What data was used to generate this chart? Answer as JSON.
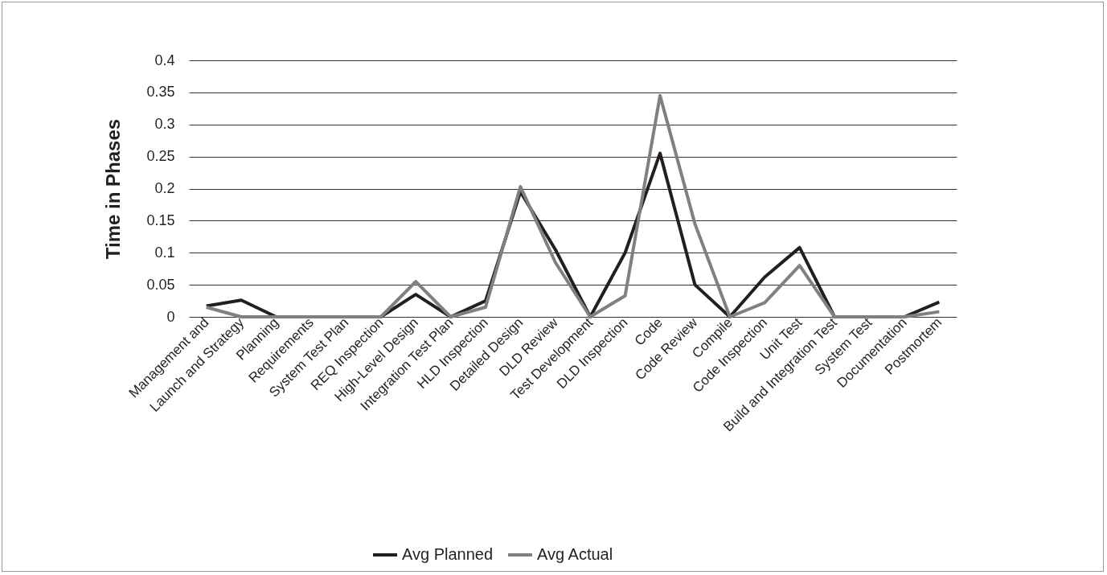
{
  "chart_data": {
    "type": "line",
    "ylabel": "Time in Phases",
    "categories": [
      "Management and",
      "Launch and Strategy",
      "Planning",
      "Requirements",
      "System Test Plan",
      "REQ Inspection",
      "High-Level Design",
      "Integration Test Plan",
      "HLD Inspection",
      "Detailed Design",
      "DLD Review",
      "Test Development",
      "DLD Inspection",
      "Code",
      "Code Review",
      "Compile",
      "Code Inspection",
      "Unit Test",
      "Build and Integration Test",
      "System Test",
      "Documentation",
      "Postmortem"
    ],
    "series": [
      {
        "name": "Avg Planned",
        "color": "#231f20",
        "values": [
          0.017,
          0.026,
          0,
          0,
          0,
          0,
          0.035,
          0,
          0.025,
          0.195,
          0.105,
          0,
          0.1,
          0.255,
          0.05,
          0,
          0.062,
          0.108,
          0,
          0,
          0,
          0.023
        ]
      },
      {
        "name": "Avg Actual",
        "color": "#808080",
        "values": [
          0.015,
          0,
          0,
          0,
          0,
          0,
          0.055,
          0,
          0.015,
          0.203,
          0.085,
          0,
          0.033,
          0.345,
          0.145,
          0,
          0.022,
          0.08,
          0,
          0,
          0,
          0.008
        ]
      }
    ],
    "ylim": [
      0,
      0.4
    ],
    "yticks": [
      0,
      0.05,
      0.1,
      0.15,
      0.2,
      0.25,
      0.3,
      0.35,
      0.4
    ],
    "grid": "y",
    "legend": "bottom",
    "marker": "none",
    "line_style": "solid"
  }
}
